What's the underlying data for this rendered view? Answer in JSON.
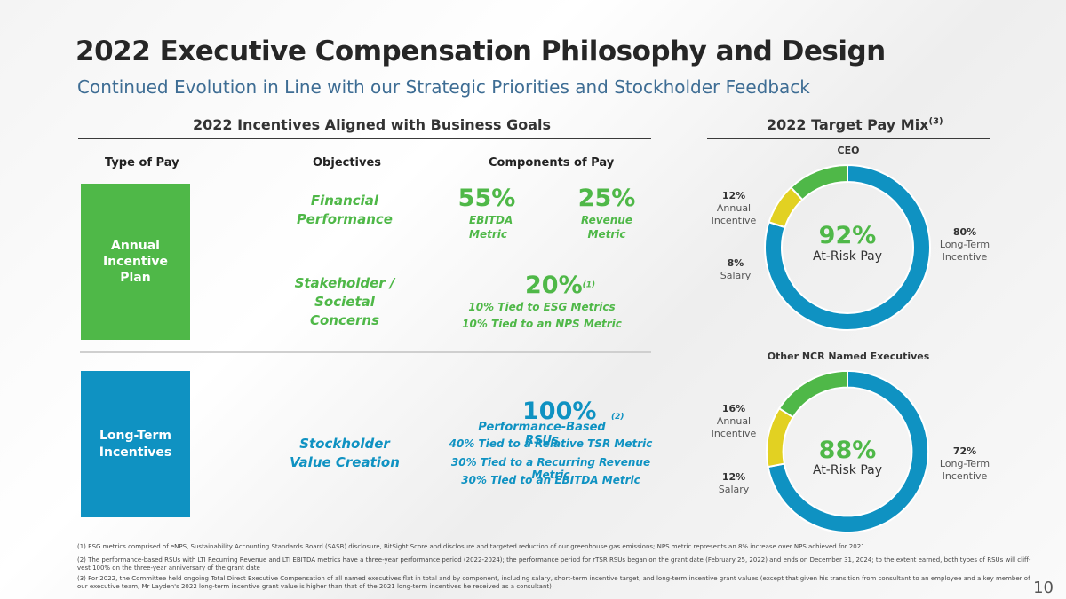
{
  "title": "2022 Executive Compensation Philosophy and Design",
  "subtitle": "Continued Evolution in Line with our Strategic Priorities and Stockholder Feedback",
  "left_section": {
    "heading": "2022 Incentives Aligned with Business Goals",
    "col_type": "Type of Pay",
    "col_objectives": "Objectives",
    "col_components": "Components of Pay",
    "annual": {
      "label": "Annual Incentive Plan",
      "obj1": "Financial Performance",
      "pct1": "55%",
      "pct1_label": "EBITDA Metric",
      "pct2": "25%",
      "pct2_label": "Revenue Metric",
      "obj2": "Stakeholder / Societal Concerns",
      "pct3": "20%",
      "pct3_note": "(1)",
      "line1": "10% Tied to ESG Metrics",
      "line2": "10% Tied to an NPS Metric"
    },
    "lti": {
      "label": "Long-Term Incentives",
      "obj": "Stockholder Value Creation",
      "pct": "100%",
      "pct_note": "(2)",
      "sub": "Performance-Based RSUs",
      "line1": "40% Tied to a Relative TSR Metric",
      "line2": "30% Tied to a Recurring Revenue Metric",
      "line3": "30% Tied to an EBITDA Metric"
    }
  },
  "right_section": {
    "heading": "2022 Target Pay Mix",
    "heading_note": "(3)",
    "ceo": {
      "title": "CEO",
      "center_pct": "92%",
      "center_label": "At-Risk Pay",
      "annual_pct": "12%",
      "annual_label": "Annual Incentive",
      "lt_pct": "80%",
      "lt_label": "Long-Term Incentive",
      "salary_pct": "8%",
      "salary_label": "Salary"
    },
    "others": {
      "title": "Other NCR Named Executives",
      "center_pct": "88%",
      "center_label": "At-Risk Pay",
      "annual_pct": "16%",
      "annual_label": "Annual Incentive",
      "lt_pct": "72%",
      "lt_label": "Long-Term Incentive",
      "salary_pct": "12%",
      "salary_label": "Salary"
    }
  },
  "chart_data": [
    {
      "type": "pie",
      "title": "CEO",
      "categories": [
        "Long-Term Incentive",
        "Annual Incentive",
        "Salary"
      ],
      "values": [
        80,
        12,
        8
      ],
      "colors": [
        "#0f92c2",
        "#4fb848",
        "#e2d122"
      ]
    },
    {
      "type": "pie",
      "title": "Other NCR Named Executives",
      "categories": [
        "Long-Term Incentive",
        "Annual Incentive",
        "Salary"
      ],
      "values": [
        72,
        16,
        12
      ],
      "colors": [
        "#0f92c2",
        "#4fb848",
        "#e2d122"
      ]
    }
  ],
  "colors": {
    "green": "#4fb848",
    "blue": "#0f92c2",
    "yellow": "#e2d122"
  },
  "footnotes": {
    "f1": "(1) ESG metrics comprised of eNPS, Sustainability Accounting Standards Board (SASB) disclosure, BitSight Score and disclosure and targeted reduction of our greenhouse gas emissions; NPS metric represents an 8% increase over NPS achieved for 2021",
    "f2": "(2) The performance-based RSUs with LTI Recurring Revenue and LTI EBITDA metrics have a three-year performance period (2022-2024); the performance period for rTSR RSUs began on the grant date (February 25, 2022) and ends on December 31, 2024; to the extent earned, both types of RSUs will cliff-vest 100% on the three-year anniversary of the grant date",
    "f3": "(3) For 2022, the Committee held ongoing Total Direct Executive Compensation of all named executives flat in total and by component, including salary, short-term incentive target, and long-term incentive grant values (except that given his transition from consultant to an employee and a key member of our executive team, Mr Layden's 2022 long-term incentive grant value is higher than that of the 2021 long-term incentives he received as a consultant)"
  },
  "page_number": "10"
}
